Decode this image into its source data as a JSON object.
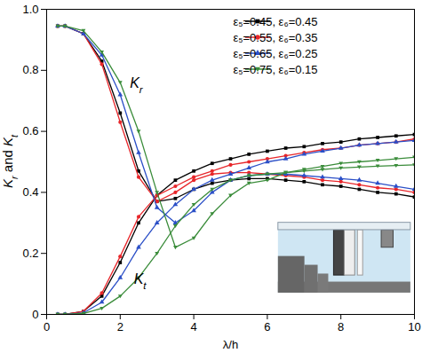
{
  "chart_data": {
    "type": "line",
    "x_label": "λ/h",
    "y_label": "Kr and Kt",
    "xlim": [
      0,
      10
    ],
    "ylim": [
      0,
      1
    ],
    "xticks": [
      0,
      2,
      4,
      6,
      8,
      10
    ],
    "yticks": [
      0,
      0.2,
      0.4,
      0.6,
      0.8,
      {
        "value": 1,
        "label": "1.0"
      }
    ],
    "legend": "upper right",
    "x": [
      0.3,
      0.5,
      1,
      1.5,
      2,
      2.5,
      3,
      3.5,
      4,
      4.5,
      5,
      5.5,
      6,
      6.5,
      7,
      7.5,
      8,
      8.5,
      9,
      9.5,
      10
    ],
    "series": [
      {
        "name": "ε₅=0.45, ε₆=0.45",
        "color": "#000000",
        "marker": "square",
        "Kr": [
          0.945,
          0.945,
          0.92,
          0.83,
          0.66,
          0.47,
          0.37,
          0.38,
          0.41,
          0.43,
          0.44,
          0.445,
          0.445,
          0.44,
          0.435,
          0.425,
          0.42,
          0.41,
          0.4,
          0.395,
          0.385
        ],
        "Kt": [
          0,
          0,
          0.01,
          0.06,
          0.17,
          0.3,
          0.39,
          0.44,
          0.47,
          0.495,
          0.51,
          0.525,
          0.535,
          0.545,
          0.55,
          0.56,
          0.565,
          0.575,
          0.58,
          0.585,
          0.59
        ]
      },
      {
        "name": "ε₅=0.55, ε₆=0.35",
        "color": "#e8262a",
        "marker": "circle",
        "Kr": [
          0.945,
          0.945,
          0.92,
          0.82,
          0.63,
          0.45,
          0.37,
          0.4,
          0.44,
          0.46,
          0.465,
          0.465,
          0.46,
          0.455,
          0.45,
          0.44,
          0.435,
          0.425,
          0.415,
          0.41,
          0.4
        ],
        "Kt": [
          0,
          0,
          0.01,
          0.07,
          0.19,
          0.32,
          0.39,
          0.42,
          0.45,
          0.47,
          0.49,
          0.5,
          0.51,
          0.52,
          0.53,
          0.54,
          0.545,
          0.555,
          0.56,
          0.565,
          0.575
        ]
      },
      {
        "name": "ε₅=0.65, ε₆=0.25",
        "color": "#2b4fc7",
        "marker": "triangle",
        "Kr": [
          0.945,
          0.945,
          0.92,
          0.85,
          0.72,
          0.53,
          0.35,
          0.3,
          0.34,
          0.4,
          0.44,
          0.455,
          0.46,
          0.46,
          0.455,
          0.45,
          0.445,
          0.44,
          0.43,
          0.42,
          0.41
        ],
        "Kt": [
          0,
          0,
          0.005,
          0.04,
          0.12,
          0.22,
          0.3,
          0.36,
          0.41,
          0.44,
          0.46,
          0.48,
          0.5,
          0.51,
          0.525,
          0.535,
          0.545,
          0.555,
          0.56,
          0.565,
          0.57
        ]
      },
      {
        "name": "ε₅=0.75, ε₆=0.15",
        "color": "#3a8c3a",
        "marker": "triangle-down",
        "Kr": [
          0.945,
          0.945,
          0.93,
          0.86,
          0.76,
          0.6,
          0.4,
          0.22,
          0.25,
          0.33,
          0.39,
          0.43,
          0.44,
          0.465,
          0.475,
          0.485,
          0.495,
          0.5,
          0.505,
          0.51,
          0.515
        ],
        "Kt": [
          0,
          0,
          0.003,
          0.02,
          0.06,
          0.12,
          0.2,
          0.29,
          0.36,
          0.41,
          0.44,
          0.455,
          0.46,
          0.465,
          0.47,
          0.475,
          0.48,
          0.483,
          0.486,
          0.488,
          0.49
        ]
      }
    ],
    "annotations": [
      {
        "text": "Kr",
        "x": 2.45,
        "y": 0.74
      },
      {
        "text": "Kt",
        "x": 2.55,
        "y": 0.1
      }
    ]
  }
}
